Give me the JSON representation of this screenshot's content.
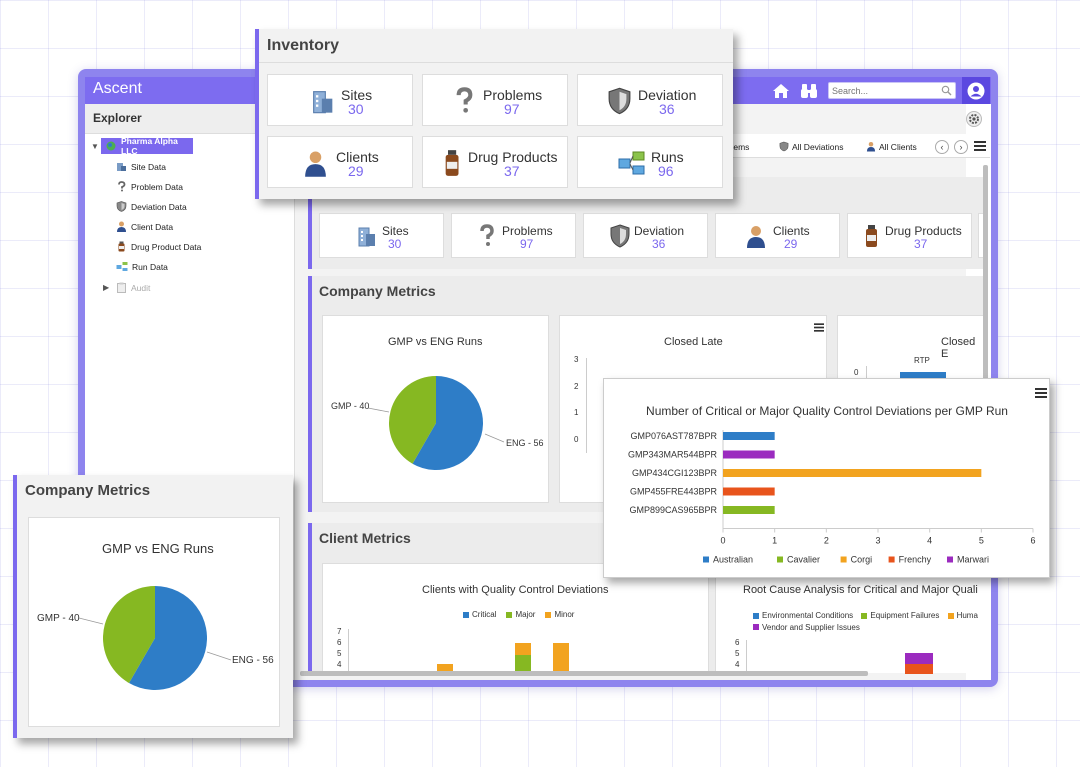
{
  "app": {
    "title": "Ascent",
    "search_placeholder": "Search...",
    "accent": "#7b68ee"
  },
  "sidebar": {
    "title": "Explorer",
    "root": "Pharma Alpha LLC",
    "items": [
      {
        "label": "Site Data",
        "icon": "building-icon"
      },
      {
        "label": "Problem Data",
        "icon": "question-icon"
      },
      {
        "label": "Deviation Data",
        "icon": "shield-icon"
      },
      {
        "label": "Client Data",
        "icon": "person-icon"
      },
      {
        "label": "Drug Product Data",
        "icon": "bottle-icon"
      },
      {
        "label": "Run Data",
        "icon": "flow-icon"
      }
    ],
    "audit": "Audit"
  },
  "tabs": [
    {
      "label": "oblems"
    },
    {
      "label": "All Deviations"
    },
    {
      "label": "All Clients"
    }
  ],
  "inventory": {
    "title": "Inventory",
    "tiles": [
      {
        "name": "Sites",
        "count": "30",
        "icon": "building-icon"
      },
      {
        "name": "Problems",
        "count": "97",
        "icon": "question-icon"
      },
      {
        "name": "Deviation",
        "count": "36",
        "icon": "shield-icon"
      },
      {
        "name": "Clients",
        "count": "29",
        "icon": "person-icon"
      },
      {
        "name": "Drug Products",
        "count": "37",
        "icon": "bottle-icon"
      },
      {
        "name": "Runs",
        "count": "96",
        "icon": "flow-icon"
      }
    ]
  },
  "bg_inventory_tiles": [
    {
      "name": "Sites",
      "count": "30"
    },
    {
      "name": "Problems",
      "count": "97"
    },
    {
      "name": "Deviation",
      "count": "36"
    },
    {
      "name": "Clients",
      "count": "29"
    },
    {
      "name": "Drug Products",
      "count": "37"
    }
  ],
  "company_metrics": {
    "title": "Company Metrics",
    "gmp_title": "GMP vs ENG Runs",
    "gmp_label": "GMP - 40",
    "eng_label": "ENG - 56",
    "closed_late_title": "Closed Late",
    "closed_late_ticks": [
      "3",
      "2",
      "1",
      "0"
    ],
    "closed_b_title": "Closed E",
    "rtp_label": "RTP",
    "rtp_tick": "0"
  },
  "client_metrics": {
    "title": "Client Metrics",
    "qc_title": "Clients with Quality Control Deviations",
    "qc_legend": [
      "Critical",
      "Major",
      "Minor"
    ],
    "qc_ticks": [
      "7",
      "6",
      "5",
      "4"
    ],
    "rca_title": "Root Cause Analysis for Critical and Major Quali",
    "rca_legend": [
      "Environmental Conditions",
      "Equipment Failures",
      "Huma",
      "Vendor and Supplier Issues"
    ],
    "rca_ticks": [
      "6",
      "5",
      "4"
    ]
  },
  "colors": {
    "blue": "#2e7dc7",
    "green": "#86b822",
    "orange": "#f2a31f",
    "red": "#e8541c",
    "purple": "#9b2bbf"
  },
  "chart_data": [
    {
      "type": "pie",
      "title": "GMP vs ENG Runs",
      "labels": [
        "GMP",
        "ENG"
      ],
      "values": [
        40,
        56
      ],
      "colors": [
        "#86b822",
        "#2e7dc7"
      ]
    },
    {
      "type": "bar",
      "orientation": "horizontal",
      "title": "Number of Critical or Major Quality Control Deviations per GMP Run",
      "categories": [
        "GMP076AST787BPR",
        "GMP343MAR544BPR",
        "GMP434CGI123BPR",
        "GMP455FRE443BPR",
        "GMP899CAS965BPR"
      ],
      "values": [
        1,
        1,
        5,
        1,
        1
      ],
      "bar_colors": [
        "#2e7dc7",
        "#9b2bbf",
        "#f2a31f",
        "#e8541c",
        "#86b822"
      ],
      "xlim": [
        0,
        6
      ],
      "xticks": [
        "0",
        "1",
        "2",
        "3",
        "4",
        "5",
        "6"
      ],
      "legend": [
        {
          "name": "Australian",
          "color": "#2e7dc7"
        },
        {
          "name": "Cavalier",
          "color": "#86b822"
        },
        {
          "name": "Corgi",
          "color": "#f2a31f"
        },
        {
          "name": "Frenchy",
          "color": "#e8541c"
        },
        {
          "name": "Marwari",
          "color": "#9b2bbf"
        }
      ],
      "legend_position": "bottom"
    }
  ]
}
